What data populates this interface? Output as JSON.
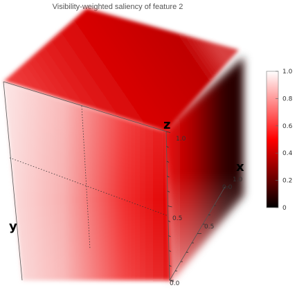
{
  "chart_data": {
    "type": "heatmap",
    "title": "Visibility-weighted saliency of feature 2",
    "axes": {
      "x": {
        "label": "x",
        "ticks": [
          "0.0",
          "0.5",
          "1.0"
        ],
        "range": [
          0,
          1
        ]
      },
      "y": {
        "label": "y",
        "range": [
          0,
          1
        ]
      },
      "z": {
        "label": "z",
        "ticks": [
          "0.0",
          "0.5",
          "1.0"
        ],
        "range": [
          0,
          1
        ]
      }
    },
    "colorbar": {
      "range": [
        0,
        1
      ],
      "ticks": [
        "0",
        "0.2",
        "0.4",
        "0.6",
        "0.8",
        "1.0"
      ],
      "colors": [
        "#000000",
        "#ff0000",
        "#ffffff"
      ]
    },
    "grid": true,
    "legend_position": "right"
  }
}
